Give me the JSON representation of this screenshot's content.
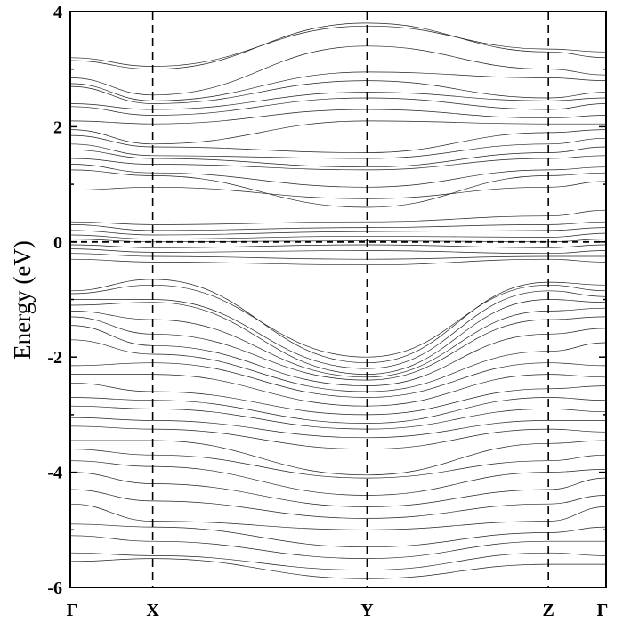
{
  "chart_data": {
    "type": "line",
    "ylabel": "Energy (eV)",
    "xlabel": "",
    "ylim": [
      -6,
      4
    ],
    "yticks": [
      -6,
      -4,
      -2,
      0,
      2,
      4
    ],
    "ytick_labels": [
      "-6",
      "-4",
      "-2",
      "0",
      "2",
      "4"
    ],
    "kpoints": [
      {
        "label": "Γ",
        "pos": 0
      },
      {
        "label": "X",
        "pos": 1
      },
      {
        "label": "Y",
        "pos": 2
      },
      {
        "label": "Z",
        "pos": 3
      },
      {
        "label": "Γ",
        "pos": 4
      }
    ],
    "k_segment_lengths": [
      1.0,
      2.6,
      2.2,
      0.7
    ],
    "fermi_level": 0,
    "grid": false,
    "legend": "none",
    "series": [
      {
        "values": [
          3.15,
          3.0,
          3.8,
          3.3,
          3.2
        ]
      },
      {
        "values": [
          3.2,
          3.05,
          3.75,
          3.35,
          3.3
        ]
      },
      {
        "values": [
          2.85,
          2.55,
          3.4,
          3.0,
          2.9
        ]
      },
      {
        "values": [
          2.75,
          2.45,
          2.95,
          2.85,
          2.8
        ]
      },
      {
        "values": [
          2.7,
          2.4,
          2.8,
          2.5,
          2.6
        ]
      },
      {
        "values": [
          2.4,
          2.3,
          2.6,
          2.45,
          2.5
        ]
      },
      {
        "values": [
          2.35,
          2.2,
          2.5,
          2.3,
          2.4
        ]
      },
      {
        "values": [
          2.1,
          2.05,
          2.3,
          2.15,
          2.2
        ]
      },
      {
        "values": [
          1.95,
          1.7,
          2.1,
          2.05,
          2.05
        ]
      },
      {
        "values": [
          1.85,
          1.65,
          1.55,
          1.9,
          1.95
        ]
      },
      {
        "values": [
          1.7,
          1.5,
          1.45,
          1.7,
          1.8
        ]
      },
      {
        "values": [
          1.6,
          1.45,
          1.3,
          1.55,
          1.65
        ]
      },
      {
        "values": [
          1.45,
          1.35,
          1.25,
          1.45,
          1.5
        ]
      },
      {
        "values": [
          1.35,
          1.2,
          0.95,
          1.25,
          1.3
        ]
      },
      {
        "values": [
          1.25,
          1.15,
          0.6,
          1.15,
          1.2
        ]
      },
      {
        "values": [
          0.9,
          0.95,
          0.75,
          0.95,
          1.05
        ]
      },
      {
        "values": [
          0.35,
          0.3,
          0.35,
          0.45,
          0.55
        ]
      },
      {
        "values": [
          0.3,
          0.2,
          0.25,
          0.3,
          0.35
        ]
      },
      {
        "values": [
          0.2,
          0.12,
          0.18,
          0.2,
          0.25
        ]
      },
      {
        "values": [
          0.12,
          0.05,
          0.1,
          0.08,
          0.15
        ]
      },
      {
        "values": [
          0.05,
          0.0,
          0.02,
          0.0,
          0.05
        ]
      },
      {
        "values": [
          -0.05,
          -0.1,
          -0.05,
          -0.1,
          -0.05
        ]
      },
      {
        "values": [
          -0.12,
          -0.18,
          -0.15,
          -0.2,
          -0.15
        ]
      },
      {
        "values": [
          -0.2,
          -0.25,
          -0.3,
          -0.25,
          -0.25
        ]
      },
      {
        "values": [
          -0.3,
          -0.35,
          -0.4,
          -0.3,
          -0.35
        ]
      },
      {
        "values": [
          -0.85,
          -0.65,
          -2.1,
          -0.7,
          -0.75
        ]
      },
      {
        "values": [
          -0.9,
          -0.75,
          -2.0,
          -0.75,
          -0.85
        ]
      },
      {
        "values": [
          -1.0,
          -1.0,
          -2.2,
          -0.85,
          -0.95
        ]
      },
      {
        "values": [
          -1.1,
          -1.05,
          -2.3,
          -1.0,
          -1.05
        ]
      },
      {
        "values": [
          -1.2,
          -1.35,
          -2.35,
          -1.2,
          -1.15
        ]
      },
      {
        "values": [
          -1.3,
          -1.6,
          -2.4,
          -1.35,
          -1.3
        ]
      },
      {
        "values": [
          -1.45,
          -1.8,
          -2.5,
          -1.6,
          -1.5
        ]
      },
      {
        "values": [
          -1.7,
          -1.95,
          -2.6,
          -1.9,
          -1.75
        ]
      },
      {
        "values": [
          -2.15,
          -2.1,
          -2.7,
          -2.1,
          -2.15
        ]
      },
      {
        "values": [
          -2.3,
          -2.3,
          -2.85,
          -2.3,
          -2.35
        ]
      },
      {
        "values": [
          -2.45,
          -2.6,
          -3.0,
          -2.55,
          -2.5
        ]
      },
      {
        "values": [
          -2.7,
          -2.75,
          -3.15,
          -2.7,
          -2.75
        ]
      },
      {
        "values": [
          -2.85,
          -2.9,
          -3.25,
          -2.9,
          -2.95
        ]
      },
      {
        "values": [
          -3.05,
          -3.1,
          -3.4,
          -3.1,
          -3.1
        ]
      },
      {
        "values": [
          -3.2,
          -3.25,
          -3.6,
          -3.25,
          -3.3
        ]
      },
      {
        "values": [
          -3.45,
          -3.45,
          -4.05,
          -3.5,
          -3.45
        ]
      },
      {
        "values": [
          -3.6,
          -3.7,
          -4.1,
          -3.8,
          -3.7
        ]
      },
      {
        "values": [
          -3.8,
          -3.9,
          -4.4,
          -4.0,
          -3.95
        ]
      },
      {
        "values": [
          -4.0,
          -4.2,
          -4.6,
          -4.3,
          -4.1
        ]
      },
      {
        "values": [
          -4.3,
          -4.5,
          -4.8,
          -4.55,
          -4.4
        ]
      },
      {
        "values": [
          -4.55,
          -4.85,
          -5.0,
          -4.85,
          -4.6
        ]
      },
      {
        "values": [
          -4.9,
          -4.95,
          -5.3,
          -5.05,
          -4.95
        ]
      },
      {
        "values": [
          -5.1,
          -5.2,
          -5.5,
          -5.2,
          -5.2
        ]
      },
      {
        "values": [
          -5.4,
          -5.45,
          -5.7,
          -5.4,
          -5.45
        ]
      },
      {
        "values": [
          -5.55,
          -5.5,
          -5.85,
          -5.6,
          -5.6
        ]
      }
    ]
  }
}
